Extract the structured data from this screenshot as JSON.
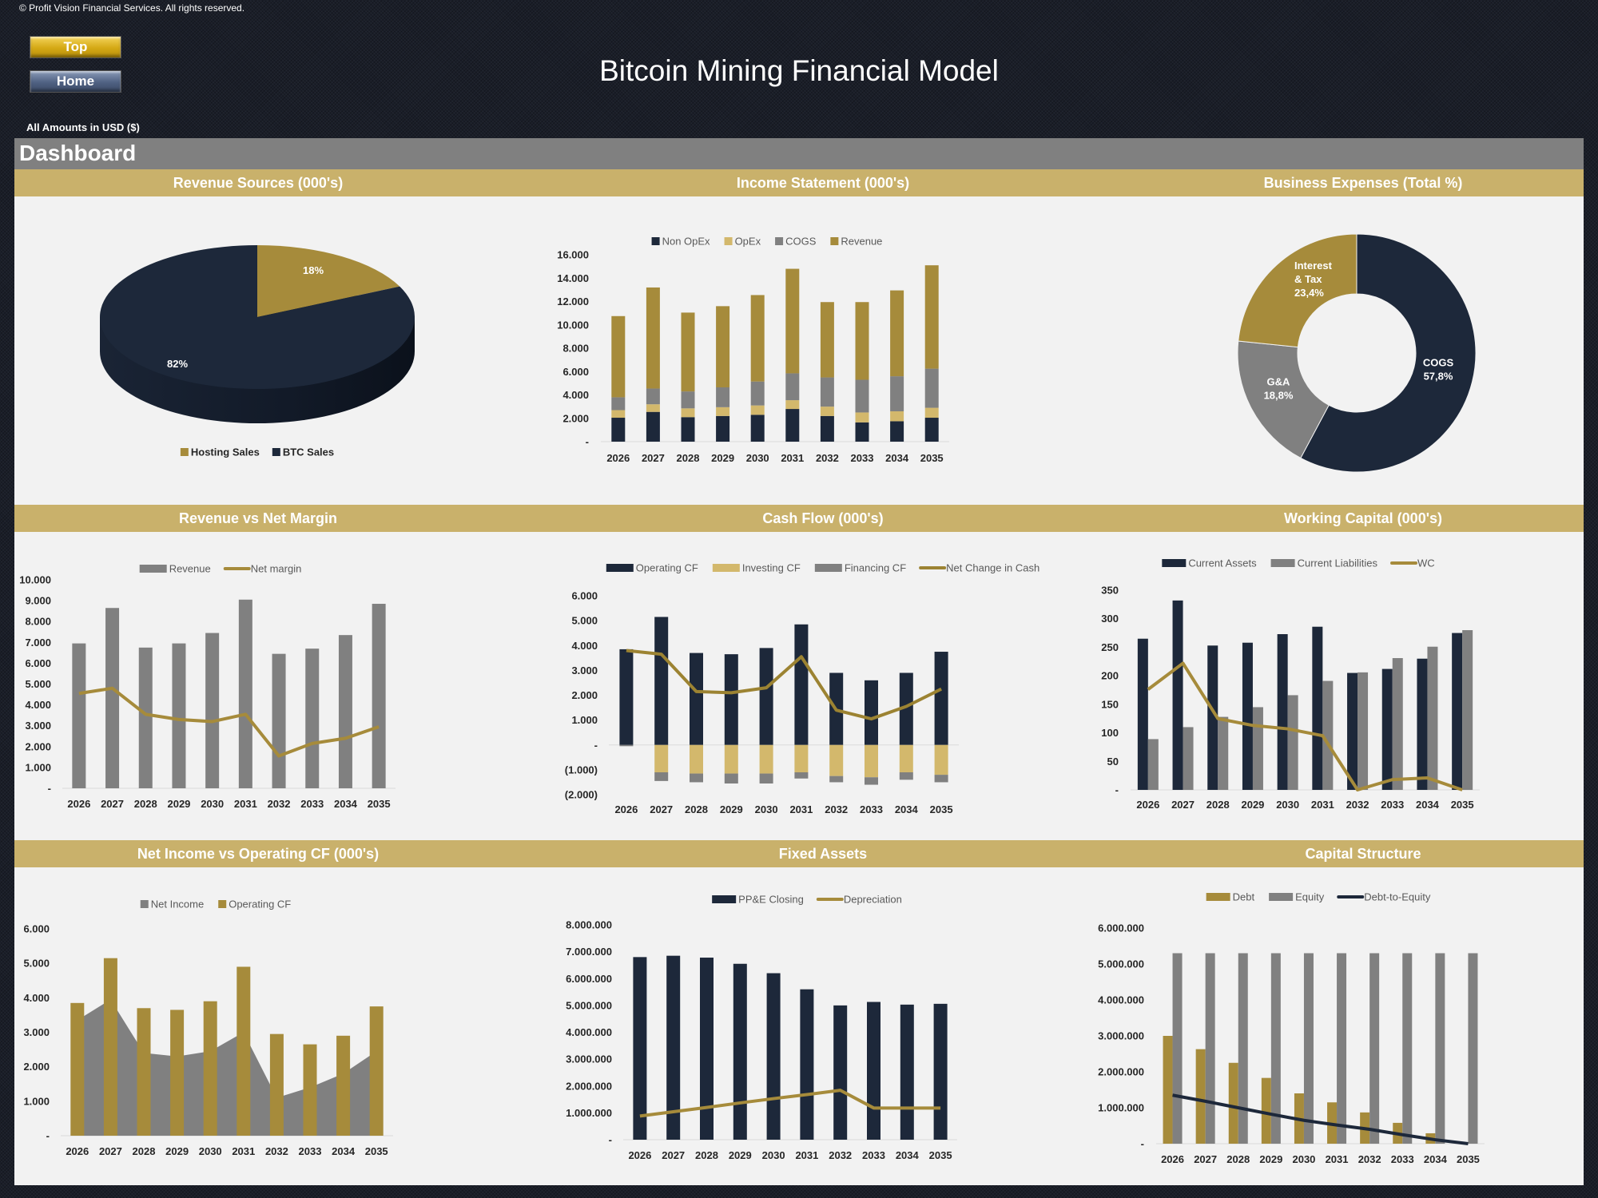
{
  "header": {
    "copyright": "© Profit Vision Financial Services. All rights reserved.",
    "title": "Bitcoin Mining Financial Model",
    "currency_note": "All Amounts in  USD ($)",
    "buttons": {
      "top": "Top",
      "home": "Home"
    }
  },
  "dashboard": {
    "title": "Dashboard"
  },
  "colors": {
    "navy": "#1d283a",
    "gold": "#a68b3b",
    "light_gold": "#d3b86c",
    "gray": "#808080",
    "header_gold": "#c9b16b",
    "panel_bg": "#f2f2f2"
  },
  "chart_data": [
    {
      "type": "pie",
      "style": "3d",
      "title": "Revenue Sources (000's)",
      "legend_position": "bottom",
      "slices": [
        {
          "name": "Hosting Sales",
          "value": 18,
          "label": [
            "18%"
          ],
          "color": "#a68b3b"
        },
        {
          "name": "BTC Sales",
          "value": 82,
          "label": [
            "82%"
          ],
          "color": "#1d283a"
        }
      ]
    },
    {
      "type": "bar",
      "stacked": true,
      "title": "Income Statement (000's)",
      "legend_position": "top",
      "categories": [
        "2026",
        "2027",
        "2028",
        "2029",
        "2030",
        "2031",
        "2032",
        "2033",
        "2034",
        "2035"
      ],
      "ylim": [
        0,
        16000
      ],
      "y_ticks": [
        0,
        2000,
        4000,
        6000,
        8000,
        10000,
        12000,
        14000,
        16000
      ],
      "y_tick_labels": [
        "-",
        "2.000",
        "4.000",
        "6.000",
        "8.000",
        "10.000",
        "12.000",
        "14.000",
        "16.000"
      ],
      "series": [
        {
          "name": "Non OpEx",
          "kind": "bar",
          "stack": "a",
          "color": "#1d283a",
          "values": [
            2050,
            2550,
            2100,
            2200,
            2300,
            2800,
            2200,
            1650,
            1750,
            2050
          ]
        },
        {
          "name": "OpEx",
          "kind": "bar",
          "stack": "a",
          "color": "#d3b86c",
          "values": [
            650,
            650,
            750,
            750,
            800,
            750,
            800,
            850,
            850,
            850
          ]
        },
        {
          "name": "COGS",
          "kind": "bar",
          "stack": "a",
          "color": "#808080",
          "values": [
            1100,
            1350,
            1450,
            1700,
            2050,
            2300,
            2500,
            2800,
            3000,
            3350
          ]
        },
        {
          "name": "Revenue",
          "kind": "bar",
          "stack": "a",
          "color": "#a68b3b",
          "values": [
            6950,
            8650,
            6750,
            6950,
            7400,
            8950,
            6450,
            6650,
            7350,
            8850
          ]
        }
      ]
    },
    {
      "type": "bar",
      "title": "Revenue vs Net Margin",
      "legend_position": "top",
      "categories": [
        "2026",
        "2027",
        "2028",
        "2029",
        "2030",
        "2031",
        "2032",
        "2033",
        "2034",
        "2035"
      ],
      "ylim": [
        0,
        10000
      ],
      "y_ticks": [
        0,
        1000,
        2000,
        3000,
        4000,
        5000,
        6000,
        7000,
        8000,
        9000,
        10000
      ],
      "y_tick_labels": [
        "-",
        "1.000",
        "2.000",
        "3.000",
        "4.000",
        "5.000",
        "6.000",
        "7.000",
        "8.000",
        "9.000",
        "10.000"
      ],
      "series": [
        {
          "name": "Revenue",
          "kind": "bar",
          "color": "#808080",
          "values": [
            6950,
            8650,
            6750,
            6950,
            7450,
            9050,
            6450,
            6700,
            7350,
            8850
          ]
        },
        {
          "name": "Net margin",
          "kind": "line",
          "color": "#a68b3b",
          "values": [
            4550,
            4800,
            3550,
            3300,
            3200,
            3550,
            1550,
            2150,
            2400,
            2950
          ]
        }
      ]
    },
    {
      "type": "bar",
      "stacked": true,
      "title": "Cash Flow (000's)",
      "legend_position": "top",
      "categories": [
        "2026",
        "2027",
        "2028",
        "2029",
        "2030",
        "2031",
        "2032",
        "2033",
        "2034",
        "2035"
      ],
      "ylim": [
        -2000,
        6000
      ],
      "y_ticks": [
        -2000,
        -1000,
        0,
        1000,
        2000,
        3000,
        4000,
        5000,
        6000
      ],
      "y_tick_labels": [
        "(2.000)",
        "(1.000)",
        "-",
        "1.000",
        "2.000",
        "3.000",
        "4.000",
        "5.000",
        "6.000"
      ],
      "series": [
        {
          "name": "Operating CF",
          "kind": "bar",
          "stack": "cf",
          "color": "#1d283a",
          "values": [
            3850,
            5150,
            3700,
            3650,
            3900,
            4850,
            2900,
            2600,
            2900,
            3750
          ]
        },
        {
          "name": "Investing CF",
          "kind": "bar",
          "stack": "cf",
          "color": "#d3b86c",
          "values": [
            0,
            -1100,
            -1150,
            -1150,
            -1150,
            -1100,
            -1250,
            -1300,
            -1100,
            -1200
          ]
        },
        {
          "name": "Financing CF",
          "kind": "bar",
          "stack": "cf",
          "color": "#808080",
          "values": [
            -50,
            -350,
            -350,
            -400,
            -400,
            -250,
            -250,
            -300,
            -300,
            -300
          ]
        },
        {
          "name": "Net Change in Cash",
          "kind": "line",
          "color": "#9c8332",
          "values": [
            3800,
            3650,
            2150,
            2100,
            2300,
            3550,
            1400,
            1050,
            1550,
            2250
          ]
        }
      ]
    },
    {
      "type": "bar",
      "title": "Working Capital (000's)",
      "legend_position": "top",
      "categories": [
        "2026",
        "2027",
        "2028",
        "2029",
        "2030",
        "2031",
        "2032",
        "2033",
        "2034",
        "2035"
      ],
      "ylim": [
        0,
        350
      ],
      "y_ticks": [
        0,
        50,
        100,
        150,
        200,
        250,
        300,
        350
      ],
      "y_tick_labels": [
        "-",
        "50",
        "100",
        "150",
        "200",
        "250",
        "300",
        "350"
      ],
      "series": [
        {
          "name": "Current Assets",
          "kind": "bar",
          "color": "#1d283a",
          "values": [
            265,
            332,
            253,
            258,
            273,
            286,
            205,
            212,
            230,
            275
          ]
        },
        {
          "name": "Current Liabilities",
          "kind": "bar",
          "color": "#808080",
          "values": [
            89,
            110,
            128,
            145,
            166,
            191,
            206,
            231,
            251,
            280
          ]
        },
        {
          "name": "WC",
          "kind": "line",
          "color": "#a68b3b",
          "values": [
            176,
            222,
            125,
            113,
            107,
            95,
            0,
            18,
            21,
            0
          ]
        }
      ]
    },
    {
      "type": "bar",
      "title": "Net Income vs Operating CF (000's)",
      "legend_position": "top",
      "categories": [
        "2026",
        "2027",
        "2028",
        "2029",
        "2030",
        "2031",
        "2032",
        "2033",
        "2034",
        "2035"
      ],
      "ylim": [
        0,
        6000
      ],
      "y_ticks": [
        0,
        1000,
        2000,
        3000,
        4000,
        5000,
        6000
      ],
      "y_tick_labels": [
        "-",
        "1.000",
        "2.000",
        "3.000",
        "4.000",
        "5.000",
        "6.000"
      ],
      "series": [
        {
          "name": "Net Income",
          "kind": "area",
          "color": "#808080",
          "values": [
            3350,
            3950,
            2400,
            2300,
            2450,
            3000,
            1100,
            1400,
            1800,
            2450
          ]
        },
        {
          "name": "Operating CF",
          "kind": "bar",
          "color": "#a68b3b",
          "values": [
            3850,
            5150,
            3700,
            3650,
            3900,
            4900,
            2950,
            2650,
            2900,
            3750
          ]
        }
      ]
    },
    {
      "type": "bar",
      "title": "Fixed Assets",
      "legend_position": "top",
      "categories": [
        "2026",
        "2027",
        "2028",
        "2029",
        "2030",
        "2031",
        "2032",
        "2033",
        "2034",
        "2035"
      ],
      "ylim": [
        0,
        8000000
      ],
      "y_ticks": [
        0,
        1000000,
        2000000,
        3000000,
        4000000,
        5000000,
        6000000,
        7000000,
        8000000
      ],
      "y_tick_labels": [
        "-",
        "1.000.000",
        "2.000.000",
        "3.000.000",
        "4.000.000",
        "5.000.000",
        "6.000.000",
        "7.000.000",
        "8.000.000"
      ],
      "series": [
        {
          "name": "PP&E Closing",
          "kind": "bar",
          "color": "#1d283a",
          "values": [
            6800000,
            6850000,
            6780000,
            6550000,
            6200000,
            5600000,
            5000000,
            5130000,
            5030000,
            5060000
          ]
        },
        {
          "name": "Depreciation",
          "kind": "line",
          "color": "#a68b3b",
          "values": [
            880000,
            1040000,
            1200000,
            1370000,
            1530000,
            1680000,
            1840000,
            1180000,
            1180000,
            1180000
          ]
        }
      ]
    },
    {
      "type": "bar",
      "title": "Capital Structure",
      "legend_position": "top",
      "categories": [
        "2026",
        "2027",
        "2028",
        "2029",
        "2030",
        "2031",
        "2032",
        "2033",
        "2034",
        "2035"
      ],
      "ylim": [
        0,
        6000000
      ],
      "y_ticks": [
        0,
        1000000,
        2000000,
        3000000,
        4000000,
        5000000,
        6000000
      ],
      "y_tick_labels": [
        "-",
        "1.000.000",
        "2.000.000",
        "3.000.000",
        "4.000.000",
        "5.000.000",
        "6.000.000"
      ],
      "series": [
        {
          "name": "Debt",
          "kind": "bar",
          "color": "#a68b3b",
          "values": [
            3000000,
            2630000,
            2250000,
            1830000,
            1400000,
            1150000,
            870000,
            580000,
            290000,
            0
          ]
        },
        {
          "name": "Equity",
          "kind": "bar",
          "color": "#808080",
          "values": [
            5300000,
            5300000,
            5300000,
            5300000,
            5300000,
            5300000,
            5300000,
            5300000,
            5300000,
            5300000
          ]
        },
        {
          "name": "Debt-to-Equity",
          "kind": "line",
          "color": "#1d283a",
          "values": [
            1350000,
            1180000,
            1000000,
            820000,
            650000,
            520000,
            400000,
            250000,
            110000,
            0
          ]
        }
      ]
    },
    {
      "type": "pie",
      "style": "donut",
      "title": "Business Expenses (Total %)",
      "slices": [
        {
          "name": "COGS",
          "value": 57.8,
          "label": [
            "COGS",
            "57,8%"
          ],
          "color": "#1d283a"
        },
        {
          "name": "G&A",
          "value": 18.8,
          "label": [
            "G&A",
            "18,8%"
          ],
          "color": "#808080"
        },
        {
          "name": "Interest & Tax",
          "value": 23.4,
          "label": [
            "Interest",
            "& Tax",
            "23,4%"
          ],
          "color": "#a68b3b"
        }
      ]
    }
  ]
}
